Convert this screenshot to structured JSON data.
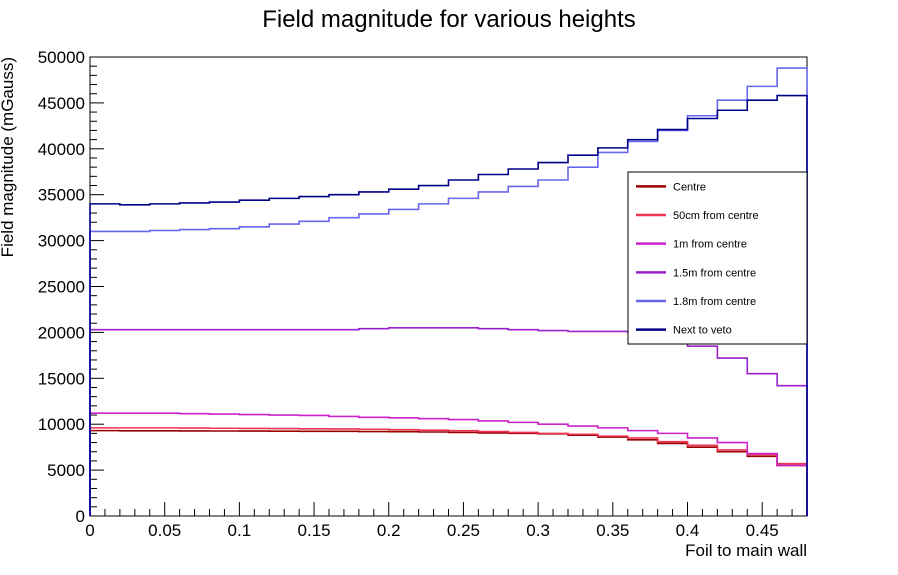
{
  "chart_data": {
    "type": "line",
    "style": "step-histogram",
    "title": "Field magnitude for various heights",
    "xlabel": "Foil to main wall",
    "ylabel": "Field magnitude (mGauss)",
    "xlim": [
      0,
      0.48
    ],
    "ylim": [
      0,
      50000
    ],
    "xticks": [
      "0",
      "0.05",
      "0.1",
      "0.15",
      "0.2",
      "0.25",
      "0.3",
      "0.35",
      "0.4",
      "0.45"
    ],
    "yticks": [
      "0",
      "5000",
      "10000",
      "15000",
      "20000",
      "25000",
      "30000",
      "35000",
      "40000",
      "45000",
      "50000"
    ],
    "grid": false,
    "legend_position": "right",
    "bin_edges": [
      0,
      0.02,
      0.04,
      0.06,
      0.08,
      0.1,
      0.12,
      0.14,
      0.16,
      0.18,
      0.2,
      0.22,
      0.24,
      0.26,
      0.28,
      0.3,
      0.32,
      0.34,
      0.36,
      0.38,
      0.4,
      0.42,
      0.44,
      0.46,
      0.48
    ],
    "series": [
      {
        "name": "Centre",
        "color": "#990000",
        "values": [
          9300,
          9280,
          9280,
          9270,
          9260,
          9250,
          9240,
          9230,
          9220,
          9200,
          9180,
          9150,
          9100,
          9050,
          9000,
          8950,
          8800,
          8600,
          8300,
          7900,
          7500,
          7000,
          6500,
          5500
        ]
      },
      {
        "name": "50cm from centre",
        "color": "#ee3355",
        "values": [
          9600,
          9600,
          9600,
          9580,
          9560,
          9540,
          9520,
          9500,
          9480,
          9450,
          9400,
          9350,
          9300,
          9200,
          9100,
          9000,
          8900,
          8700,
          8500,
          8100,
          7700,
          7200,
          6700,
          5700
        ]
      },
      {
        "name": "1m from centre",
        "color": "#cc22cc",
        "values": [
          11200,
          11200,
          11200,
          11150,
          11100,
          11050,
          11000,
          10950,
          10850,
          10750,
          10700,
          10600,
          10500,
          10350,
          10200,
          10000,
          9800,
          9600,
          9300,
          9000,
          8500,
          8000,
          6800,
          5500
        ]
      },
      {
        "name": "1.5m from centre",
        "color": "#9922cc",
        "values": [
          20300,
          20300,
          20300,
          20300,
          20300,
          20300,
          20300,
          20300,
          20300,
          20400,
          20500,
          20500,
          20500,
          20400,
          20300,
          20200,
          20100,
          20100,
          20000,
          19800,
          18500,
          17200,
          15500,
          14200
        ]
      },
      {
        "name": "1.8m from centre",
        "color": "#6666ee",
        "values": [
          31000,
          31000,
          31100,
          31200,
          31300,
          31500,
          31800,
          32100,
          32500,
          32900,
          33400,
          34000,
          34600,
          35300,
          35900,
          36600,
          38000,
          39600,
          40800,
          42000,
          43600,
          45300,
          46800,
          48800
        ]
      },
      {
        "name": "Next to veto",
        "color": "#000088",
        "values": [
          34000,
          33900,
          34000,
          34100,
          34200,
          34400,
          34600,
          34800,
          35000,
          35300,
          35600,
          36000,
          36600,
          37200,
          37800,
          38500,
          39300,
          40100,
          41000,
          42100,
          43300,
          44200,
          45300,
          45800
        ]
      }
    ]
  }
}
